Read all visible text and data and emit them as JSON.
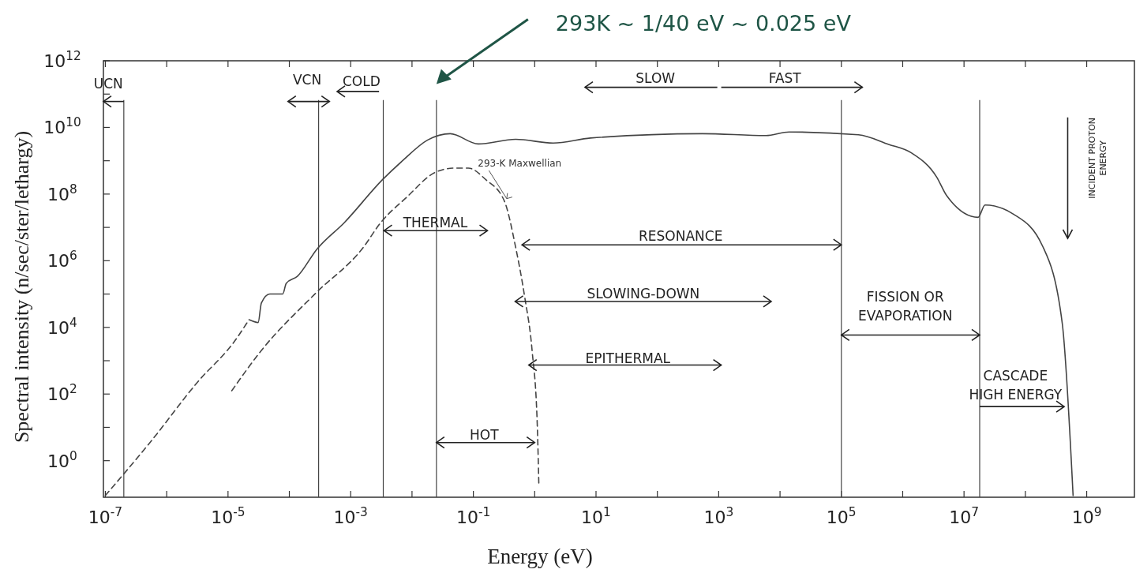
{
  "chart_data": {
    "type": "line",
    "xlabel": "Energy (eV)",
    "ylabel": "Spectral intensity (n/sec/ster/lethargy)",
    "log": "xy",
    "xlim": [
      9.3e-08,
      6000000000.0
    ],
    "ylim": [
      0.08,
      1000000000000.0
    ],
    "xticks": [
      {
        "value": 1e-07,
        "label": "10$^{-7}$"
      },
      {
        "value": 1e-06,
        "label": null
      },
      {
        "value": 1e-05,
        "label": "10$^{-5}$"
      },
      {
        "value": 0.0001,
        "label": null
      },
      {
        "value": 0.001,
        "label": "10$^{-3}$"
      },
      {
        "value": 0.01,
        "label": null
      },
      {
        "value": 0.1,
        "label": "10$^{-1}$"
      },
      {
        "value": 1,
        "label": null
      },
      {
        "value": 10,
        "label": "10$^{1}$"
      },
      {
        "value": 100,
        "label": null
      },
      {
        "value": 1000,
        "label": "10$^{3}$"
      },
      {
        "value": 10000.0,
        "label": null
      },
      {
        "value": 100000.0,
        "label": "10$^{5}$"
      },
      {
        "value": 1000000.0,
        "label": null
      },
      {
        "value": 10000000.0,
        "label": "10$^{7}$"
      },
      {
        "value": 100000000.0,
        "label": null
      },
      {
        "value": 1000000000.0,
        "label": "10$^{9}$"
      }
    ],
    "yticks": [
      {
        "value": 1,
        "label": "10$^{0}$"
      },
      {
        "value": 10,
        "label": null
      },
      {
        "value": 100,
        "label": "10$^{2}$"
      },
      {
        "value": 1000,
        "label": null
      },
      {
        "value": 10000.0,
        "label": "10$^{4}$"
      },
      {
        "value": 100000.0,
        "label": null
      },
      {
        "value": 1000000.0,
        "label": "10$^{6}$"
      },
      {
        "value": 10000000.0,
        "label": null
      },
      {
        "value": 100000000.0,
        "label": "10$^{8}$"
      },
      {
        "value": 1000000000.0,
        "label": null
      },
      {
        "value": 10000000000.0,
        "label": "10$^{10}$"
      },
      {
        "value": 100000000000.0,
        "label": null
      },
      {
        "value": 1000000000000.0,
        "label": "10$^{12}$"
      }
    ],
    "series": [
      {
        "color": "#444444",
        "line_style": "solid",
        "x": [
          2.2e-05,
          3.1e-05,
          3.5e-05,
          4.8e-05,
          7.8e-05,
          8.9e-05,
          0.000135,
          0.00028,
          0.00079,
          0.0033,
          0.007,
          0.018,
          0.042,
          0.12,
          0.49,
          2,
          8.1,
          540,
          5900,
          14000.0,
          190000.0,
          590000.0,
          1400000.0,
          3600000.0,
          5200000.0,
          17000000.0,
          22000000.0,
          64000000.0,
          190000000.0,
          400000000.0,
          600000000.0
        ],
        "values": [
          17000.0,
          14000.0,
          54000.0,
          100000.0,
          100000.0,
          210000.0,
          340000.0,
          2200000.0,
          14000000.0,
          270000000.0,
          1000000000.0,
          4200000000.0,
          6500000000.0,
          3200000000.0,
          4400000000.0,
          3400000000.0,
          4800000000.0,
          6500000000.0,
          5700000000.0,
          7300000000.0,
          6000000000.0,
          3100000000.0,
          1700000000.0,
          320000000.0,
          90000000.0,
          20000000.0,
          47000000.0,
          25000000.0,
          2800000.0,
          13000.0,
          0.09
        ]
      },
      {
        "color": "#444444",
        "line_style": "dashed",
        "x": [
          1e-07,
          5.6e-07,
          3.2e-06,
          1.3e-05,
          2.2e-05
        ],
        "values": [
          0.09,
          3.9,
          230,
          4000,
          17000.0
        ]
      },
      {
        "name": "293-K Maxwellian",
        "color": "#444444",
        "line_style": "dashed",
        "x": [
          1.15e-05,
          3.4e-05,
          0.00026,
          0.0016,
          0.0031,
          0.0081,
          0.024,
          0.048,
          0.083,
          0.16,
          0.32,
          0.49,
          0.69,
          0.91,
          1.1,
          1.17
        ],
        "values": [
          125,
          1900,
          100000.0,
          2500000.0,
          14000000.0,
          79000000.0,
          450000000.0,
          600000000.0,
          600000000.0,
          270000000.0,
          62000000.0,
          2500000.0,
          78000.0,
          1900,
          13,
          0.18
        ]
      }
    ],
    "ref_lines": [
      {
        "axis": "x",
        "value": 2e-07,
        "color": "#444444"
      },
      {
        "axis": "x",
        "value": 0.0003,
        "color": "#444444"
      },
      {
        "axis": "x",
        "value": 0.0034,
        "color": "#444444"
      },
      {
        "axis": "x",
        "value": 0.025,
        "color": "#444444"
      },
      {
        "axis": "x",
        "value": 100000.0,
        "color": "#444444"
      },
      {
        "axis": "x",
        "value": 18000000.0,
        "color": "#444444"
      }
    ],
    "annotations": [
      "UCN",
      "VCN",
      "COLD",
      "SLOW",
      "FAST",
      "THERMAL",
      "RESONANCE",
      "SLOWING-DOWN",
      "EPITHERMAL",
      "HOT",
      "FISSION OR\nEVAPORATION",
      "CASCADE\nHIGH ENERGY",
      "INCIDENT PROTON\nENERGY",
      "293K ~ 1/40 eV ~ 0.025 eV"
    ]
  }
}
